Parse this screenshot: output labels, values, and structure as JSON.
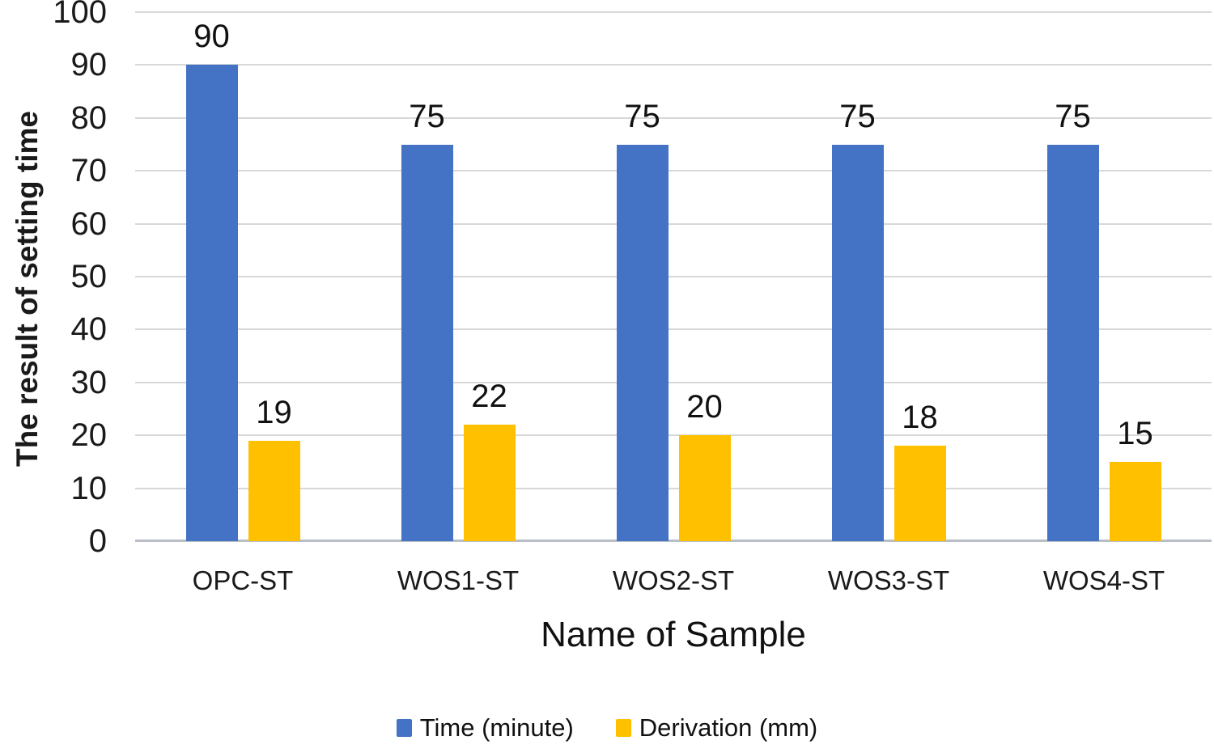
{
  "chart_data": {
    "type": "bar",
    "categories": [
      "OPC-ST",
      "WOS1-ST",
      "WOS2-ST",
      "WOS3-ST",
      "WOS4-ST"
    ],
    "series": [
      {
        "name": "Time (minute)",
        "color": "#4472C4",
        "values": [
          90,
          75,
          75,
          75,
          75
        ]
      },
      {
        "name": "Derivation (mm)",
        "color": "#FFC000",
        "values": [
          19,
          22,
          20,
          18,
          15
        ]
      }
    ],
    "title": "",
    "xlabel": "Name of Sample",
    "ylabel": "The result of setting time",
    "ylim": [
      0,
      100
    ],
    "ytick_step": 10,
    "yticks": [
      "0",
      "10",
      "20",
      "30",
      "40",
      "50",
      "60",
      "70",
      "80",
      "90",
      "100"
    ],
    "grid": true,
    "gridline_color": "#d8d8d8",
    "baseline_color": "#b9bdc5",
    "text_color": "#1a1a1a",
    "data_labels_shown": true,
    "legend_position": "bottom"
  }
}
